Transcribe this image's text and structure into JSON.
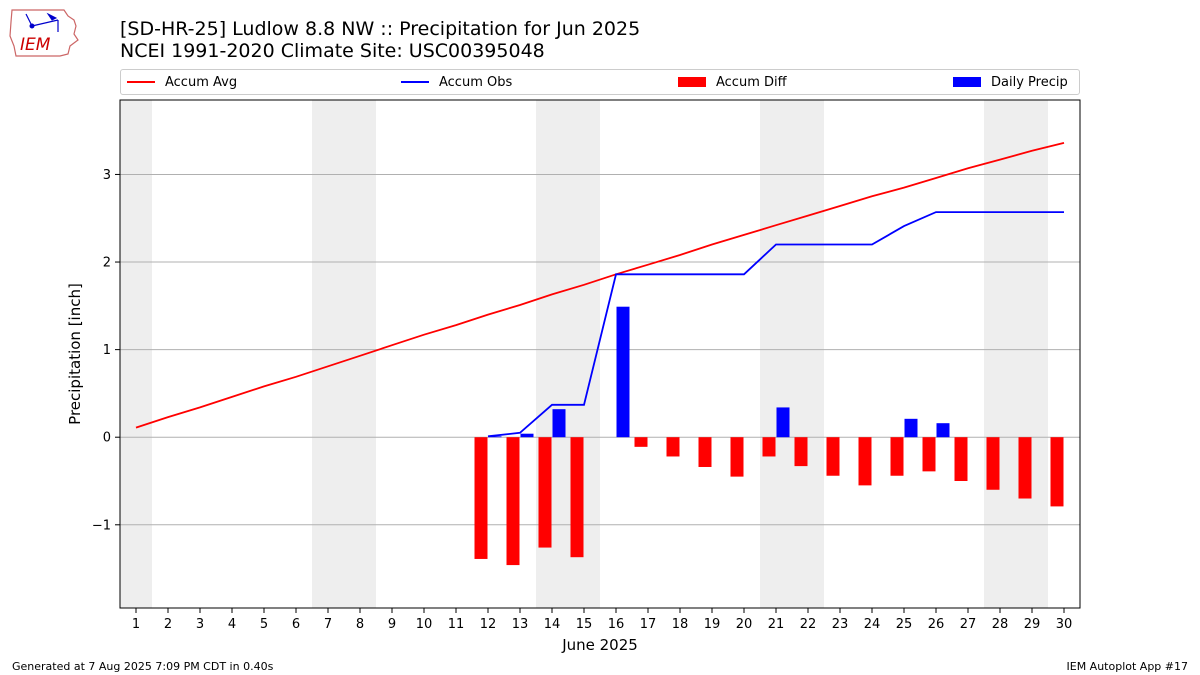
{
  "header": {
    "logo_text": "IEM",
    "title_line1": "[SD-HR-25] Ludlow 8.8 NW :: Precipitation for Jun 2025",
    "title_line2": "NCEI 1991-2020 Climate Site: USC00395048"
  },
  "legend": {
    "items": [
      {
        "label": "Accum Avg",
        "kind": "line",
        "color": "#ff0000"
      },
      {
        "label": "Accum Obs",
        "kind": "line",
        "color": "#0000ff"
      },
      {
        "label": "Accum Diff",
        "kind": "bar",
        "color": "#ff0000"
      },
      {
        "label": "Daily Precip",
        "kind": "bar",
        "color": "#0000ff"
      }
    ]
  },
  "footer": {
    "left": "Generated at 7 Aug 2025 7:09 PM CDT in 0.40s",
    "right": "IEM Autoplot App #17"
  },
  "chart_data": {
    "type": "bar",
    "xlabel": "June 2025",
    "ylabel": "Precipitation [inch]",
    "xlim": [
      0.5,
      30.5
    ],
    "ylim": [
      -1.95,
      3.85
    ],
    "yticks": [
      -1,
      0,
      1,
      2,
      3
    ],
    "ytick_labels": [
      "−1",
      "0",
      "1",
      "2",
      "3"
    ],
    "grid": "horizontal",
    "legend_placement": "top",
    "weekend_shading": [
      [
        0.5,
        1.5
      ],
      [
        6.5,
        8.5
      ],
      [
        13.5,
        15.5
      ],
      [
        20.5,
        22.5
      ],
      [
        27.5,
        29.5
      ]
    ],
    "x": [
      1,
      2,
      3,
      4,
      5,
      6,
      7,
      8,
      9,
      10,
      11,
      12,
      13,
      14,
      15,
      16,
      17,
      18,
      19,
      20,
      21,
      22,
      23,
      24,
      25,
      26,
      27,
      28,
      29,
      30
    ],
    "series": [
      {
        "name": "Accum Avg",
        "kind": "line",
        "color": "#ff0000",
        "x": [
          1,
          2,
          3,
          4,
          5,
          6,
          7,
          8,
          9,
          10,
          11,
          12,
          13,
          14,
          15,
          16,
          17,
          18,
          19,
          20,
          21,
          22,
          23,
          24,
          25,
          26,
          27,
          28,
          29,
          30
        ],
        "values": [
          0.11,
          0.23,
          0.34,
          0.46,
          0.58,
          0.69,
          0.81,
          0.93,
          1.05,
          1.17,
          1.28,
          1.4,
          1.51,
          1.63,
          1.74,
          1.86,
          1.97,
          2.08,
          2.2,
          2.31,
          2.42,
          2.53,
          2.64,
          2.75,
          2.85,
          2.96,
          3.07,
          3.17,
          3.27,
          3.36
        ]
      },
      {
        "name": "Accum Obs",
        "kind": "line",
        "color": "#0000ff",
        "x": [
          12,
          13,
          14,
          15,
          16,
          17,
          18,
          19,
          20,
          21,
          22,
          23,
          24,
          25,
          26,
          27,
          28,
          29,
          30
        ],
        "values": [
          0.01,
          0.05,
          0.37,
          0.37,
          1.86,
          1.86,
          1.86,
          1.86,
          1.86,
          2.2,
          2.2,
          2.2,
          2.2,
          2.41,
          2.57,
          2.57,
          2.57,
          2.57,
          2.57
        ]
      },
      {
        "name": "Accum Diff",
        "kind": "bar",
        "color": "#ff0000",
        "x": [
          12,
          13,
          14,
          15,
          16,
          17,
          18,
          19,
          20,
          21,
          22,
          23,
          24,
          25,
          26,
          27,
          28,
          29,
          30
        ],
        "values": [
          -1.39,
          -1.46,
          -1.26,
          -1.37,
          0.0,
          -0.11,
          -0.22,
          -0.34,
          -0.45,
          -0.22,
          -0.33,
          -0.44,
          -0.55,
          -0.44,
          -0.39,
          -0.5,
          -0.6,
          -0.7,
          -0.79
        ]
      },
      {
        "name": "Daily Precip",
        "kind": "bar",
        "color": "#0000ff",
        "x": [
          12,
          13,
          14,
          15,
          16,
          17,
          18,
          19,
          20,
          21,
          22,
          23,
          24,
          25,
          26,
          27,
          28,
          29,
          30
        ],
        "values": [
          0.01,
          0.04,
          0.32,
          0.0,
          1.49,
          0.0,
          0.0,
          0.0,
          0.0,
          0.34,
          0.0,
          0.0,
          0.0,
          0.21,
          0.16,
          0.0,
          0.0,
          0.0,
          0.0
        ]
      }
    ]
  }
}
